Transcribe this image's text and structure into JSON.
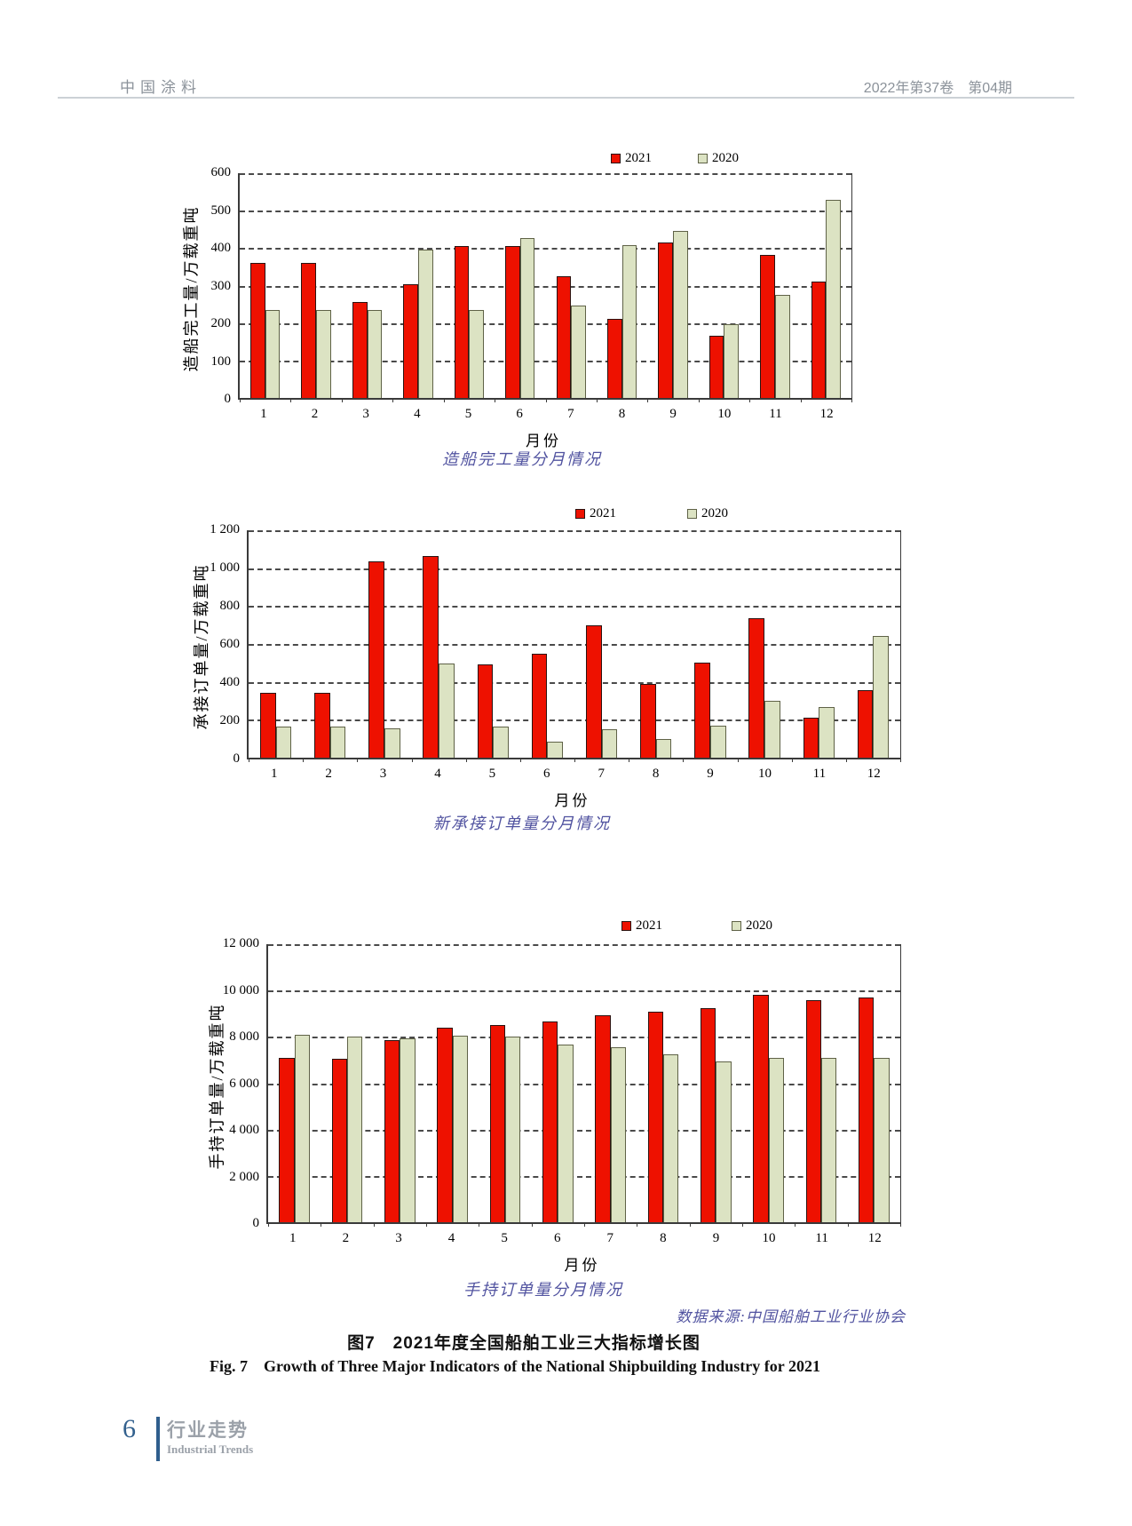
{
  "header": {
    "journal": "中国涂料",
    "issue": "2022年第37卷　第04期"
  },
  "chart_data": [
    {
      "type": "bar",
      "title": "造船完工量分月情况",
      "ylabel": "造船完工量/万载重吨",
      "xlabel": "月份",
      "legend_position": "top-right",
      "grid": "horizontal-dashed",
      "ylim": [
        0,
        600
      ],
      "yticks": [
        "600",
        "500",
        "400",
        "300",
        "200",
        "100",
        "0"
      ],
      "categories": [
        "1",
        "2",
        "3",
        "4",
        "5",
        "6",
        "7",
        "8",
        "9",
        "10",
        "11",
        "12"
      ],
      "series": [
        {
          "name": "2021",
          "values": [
            360,
            360,
            255,
            303,
            405,
            405,
            325,
            210,
            414,
            167,
            381,
            310
          ]
        },
        {
          "name": "2020",
          "values": [
            235,
            235,
            235,
            397,
            235,
            427,
            247,
            407,
            445,
            196,
            275,
            530
          ]
        }
      ]
    },
    {
      "type": "bar",
      "title": "新承接订单量分月情况",
      "ylabel": "承接订单量/万载重吨",
      "xlabel": "月份",
      "legend_position": "top-right",
      "grid": "horizontal-dashed",
      "ylim": [
        0,
        1200
      ],
      "yticks": [
        "1 200",
        "1 000",
        "800",
        "600",
        "400",
        "200",
        "0"
      ],
      "categories": [
        "1",
        "2",
        "3",
        "4",
        "5",
        "6",
        "7",
        "8",
        "9",
        "10",
        "11",
        "12"
      ],
      "series": [
        {
          "name": "2021",
          "values": [
            340,
            340,
            1035,
            1065,
            490,
            548,
            698,
            390,
            503,
            735,
            212,
            358
          ]
        },
        {
          "name": "2020",
          "values": [
            165,
            165,
            155,
            497,
            165,
            85,
            150,
            100,
            170,
            300,
            268,
            640
          ]
        }
      ]
    },
    {
      "type": "bar",
      "title": "手持订单量分月情况",
      "ylabel": "手持订单量/万载重吨",
      "xlabel": "月份",
      "legend_position": "top-right",
      "grid": "horizontal-dashed",
      "ylim": [
        0,
        12000
      ],
      "yticks": [
        "12 000",
        "10 000",
        "8 000",
        "6 000",
        "4 000",
        "2 000",
        "0"
      ],
      "categories": [
        "1",
        "2",
        "3",
        "4",
        "5",
        "6",
        "7",
        "8",
        "9",
        "10",
        "11",
        "12"
      ],
      "series": [
        {
          "name": "2021",
          "values": [
            7100,
            7050,
            7850,
            8400,
            8500,
            8650,
            8950,
            9100,
            9250,
            9800,
            9600,
            9700
          ]
        },
        {
          "name": "2020",
          "values": [
            8100,
            8000,
            7950,
            8050,
            8000,
            7650,
            7550,
            7250,
            6950,
            7100,
            7100,
            7100
          ]
        }
      ]
    }
  ],
  "source_note": "数据来源:中国船舶工业行业协会",
  "figure_caption_zh": "图7　2021年度全国船舶工业三大指标增长图",
  "figure_caption_en": "Fig. 7　Growth of Three Major Indicators of the National Shipbuilding Industry for 2021",
  "footer": {
    "page_number": "6",
    "section_zh": "行业走势",
    "section_en": "Industrial Trends"
  },
  "colors": {
    "series_2021": "#ee1100",
    "series_2020": "#dce3c3",
    "bar_border_2021": "#2a1310",
    "bar_border_2020": "#5f6247",
    "subtitle_text": "#5153a0",
    "header_text": "#8b929a",
    "footer_accent": "#2f5e8d",
    "grid": "#4a4a4a"
  }
}
